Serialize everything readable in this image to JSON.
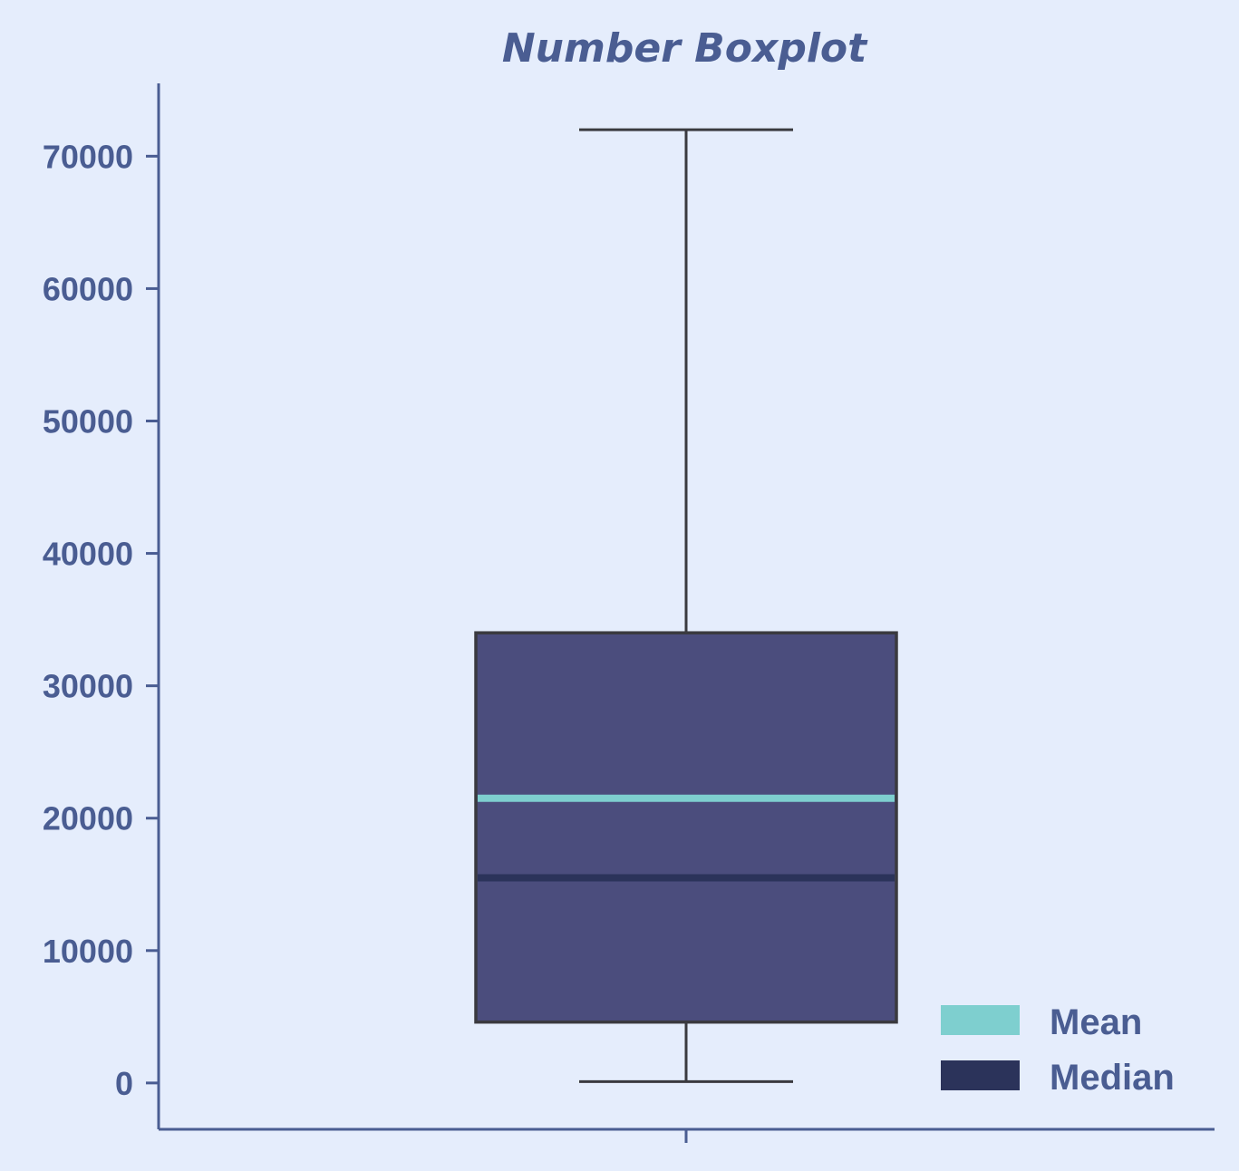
{
  "chart_data": {
    "type": "boxplot",
    "title": "Number Boxplot",
    "xlabel": "",
    "ylabel": "",
    "ylim": [
      -3500,
      75500
    ],
    "yticks": [
      0,
      10000,
      20000,
      30000,
      40000,
      50000,
      60000,
      70000
    ],
    "ytick_labels": [
      "0",
      "10000",
      "20000",
      "30000",
      "40000",
      "50000",
      "60000",
      "70000"
    ],
    "grid": false,
    "legend_position": "bottom-right",
    "legend": [
      {
        "label": "Mean",
        "color": "#7ecfcf"
      },
      {
        "label": "Median",
        "color": "#2b335a"
      }
    ],
    "box": {
      "whisker_low": 100,
      "q1": 4600,
      "median": 15500,
      "mean": 21500,
      "q3": 34000,
      "whisker_high": 72000
    },
    "colors": {
      "background": "#e5edfc",
      "box_fill": "#4b4d7d",
      "box_edge": "#3a3a3f",
      "axis": "#4a5d92",
      "text": "#4a5d92",
      "mean": "#7ecfcf",
      "median": "#2b335a"
    }
  }
}
